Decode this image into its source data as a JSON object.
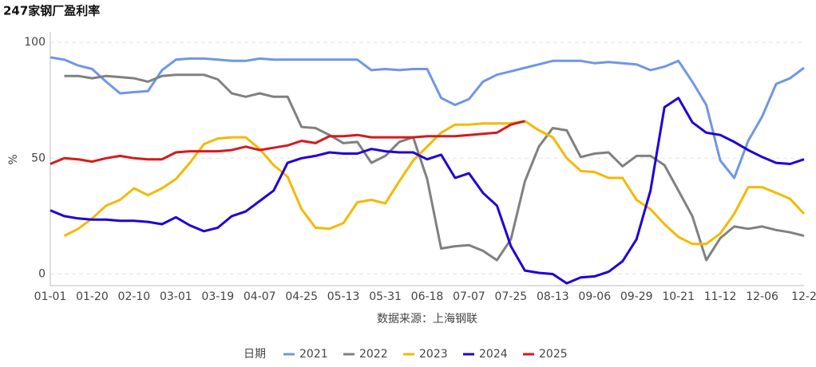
{
  "chart_data": {
    "type": "line",
    "title": "247家钢厂盈利率",
    "ylabel": "%",
    "source": "数据来源：上海钢联",
    "legend_title": "日期",
    "categories": [
      "01-01",
      null,
      null,
      "01-20",
      null,
      null,
      "02-10",
      null,
      null,
      "03-01",
      null,
      null,
      "03-19",
      null,
      null,
      "04-07",
      null,
      null,
      "04-25",
      null,
      null,
      "05-13",
      null,
      null,
      "05-31",
      null,
      null,
      "06-18",
      null,
      null,
      "07-07",
      null,
      null,
      "07-25",
      null,
      null,
      "08-13",
      null,
      null,
      "09-06",
      null,
      null,
      "09-29",
      null,
      null,
      "10-21",
      null,
      null,
      "11-12",
      null,
      null,
      "12-06",
      null,
      null,
      "12-2"
    ],
    "series": [
      {
        "name": "2021",
        "color": "#6f96e6",
        "values": [
          93.5,
          92.5,
          90,
          88.5,
          83,
          78,
          78.5,
          79,
          88,
          92.5,
          93,
          93,
          92.5,
          92,
          92,
          93,
          92.5,
          92.5,
          92.5,
          92.5,
          92.5,
          92.5,
          92.5,
          88,
          88.5,
          88,
          88.5,
          88.5,
          76,
          73,
          75.5,
          83,
          86,
          87.5,
          89,
          90.5,
          92,
          92,
          92,
          91,
          91.5,
          91,
          90.5,
          88,
          89.5,
          92,
          83,
          73,
          49,
          41.5,
          57.5,
          68,
          82,
          84.5,
          89
        ]
      },
      {
        "name": "2022",
        "color": "#808080",
        "values": [
          null,
          85.5,
          85.5,
          84.5,
          85.5,
          85,
          84.5,
          83,
          85.5,
          86,
          86,
          86,
          84,
          78,
          76.5,
          78,
          76.5,
          76.5,
          63.5,
          63,
          60,
          56.5,
          57,
          48,
          51,
          57,
          59,
          41,
          11,
          12,
          12.5,
          10,
          6,
          15,
          40,
          55,
          63,
          62,
          50.5,
          52,
          52.5,
          46.5,
          51,
          51,
          47,
          36,
          25,
          6,
          15.5,
          20.5,
          19.5,
          20.5,
          19,
          18,
          16.5
        ]
      },
      {
        "name": "2023",
        "color": "#f5b800",
        "values": [
          null,
          16.5,
          19.5,
          24,
          29.5,
          32,
          37,
          34,
          37,
          41,
          48,
          56,
          58.5,
          59,
          59,
          54,
          47,
          42,
          28,
          20,
          19.5,
          22,
          31,
          32,
          30.5,
          40,
          49,
          55,
          61,
          64.5,
          64.5,
          65,
          65,
          65,
          66,
          62,
          59,
          50,
          44.5,
          44,
          41.5,
          41.5,
          32,
          28,
          21.5,
          16,
          13,
          13,
          17.5,
          26,
          37.5,
          37.5,
          35,
          32.5,
          26
        ]
      },
      {
        "name": "2024",
        "color": "#1e00d8",
        "values": [
          27.5,
          25,
          24,
          23.5,
          23.5,
          23,
          23,
          22.5,
          21.5,
          24.5,
          21,
          18.5,
          20,
          25,
          27,
          31.5,
          36,
          48,
          50,
          51,
          52.5,
          52,
          52,
          54,
          53,
          52.5,
          52.5,
          49.5,
          51.5,
          41.5,
          43.5,
          35,
          29.5,
          12,
          1.5,
          0.5,
          0,
          -4,
          -1.5,
          -1,
          1,
          5.5,
          15,
          36,
          72,
          76,
          65.5,
          61,
          60,
          57,
          53.5,
          50.5,
          48,
          47.5,
          49.5
        ]
      },
      {
        "name": "2025",
        "color": "#d7191c",
        "values": [
          47.5,
          50,
          49.5,
          48.5,
          50,
          51,
          50,
          49.5,
          49.5,
          52.5,
          53,
          53,
          53,
          53.5,
          55,
          53.5,
          54.5,
          55.5,
          57.5,
          56.5,
          59.5,
          59.5,
          60,
          59,
          59,
          59,
          59,
          59.5,
          59.5,
          59.5,
          60,
          60.5,
          61,
          64.5,
          66,
          null,
          null,
          null,
          null,
          null,
          null,
          null,
          null,
          null,
          null,
          null,
          null,
          null,
          null,
          null,
          null,
          null,
          null,
          null,
          null
        ]
      }
    ],
    "ylim": [
      -5,
      104.5
    ],
    "yticks": [
      0,
      50,
      100
    ],
    "grid": true
  }
}
